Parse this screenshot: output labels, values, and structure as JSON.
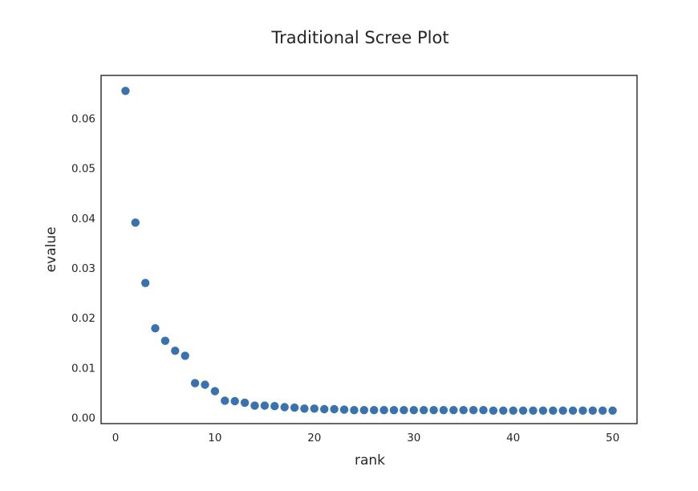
{
  "chart_data": {
    "type": "scatter",
    "title": "Traditional Scree Plot",
    "xlabel": "rank",
    "ylabel": "evalue",
    "xlim": [
      -1.45,
      52.45
    ],
    "ylim": [
      -0.0012,
      0.0686
    ],
    "xticks": [
      0,
      10,
      20,
      30,
      40,
      50
    ],
    "xtick_labels": [
      "0",
      "10",
      "20",
      "30",
      "40",
      "50"
    ],
    "yticks": [
      0.0,
      0.01,
      0.02,
      0.03,
      0.04,
      0.05,
      0.06
    ],
    "ytick_labels": [
      "0.00",
      "0.01",
      "0.02",
      "0.03",
      "0.04",
      "0.05",
      "0.06"
    ],
    "grid": false,
    "legend": "none",
    "marker_color": "#3a72b0",
    "x": [
      1,
      2,
      3,
      4,
      5,
      6,
      7,
      8,
      9,
      10,
      11,
      12,
      13,
      14,
      15,
      16,
      17,
      18,
      19,
      20,
      21,
      22,
      23,
      24,
      25,
      26,
      27,
      28,
      29,
      30,
      31,
      32,
      33,
      34,
      35,
      36,
      37,
      38,
      39,
      40,
      41,
      42,
      43,
      44,
      45,
      46,
      47,
      48,
      49,
      50
    ],
    "y": [
      0.0655,
      0.0391,
      0.027,
      0.0179,
      0.0154,
      0.0134,
      0.0124,
      0.0069,
      0.0066,
      0.0053,
      0.0034,
      0.0033,
      0.003,
      0.0024,
      0.0024,
      0.0023,
      0.0021,
      0.002,
      0.0018,
      0.0018,
      0.0017,
      0.0017,
      0.0016,
      0.0015,
      0.0015,
      0.0015,
      0.0015,
      0.0015,
      0.0015,
      0.0015,
      0.0015,
      0.0015,
      0.0015,
      0.0015,
      0.0015,
      0.0015,
      0.0015,
      0.0014,
      0.0014,
      0.0014,
      0.0014,
      0.0014,
      0.0014,
      0.0014,
      0.0014,
      0.0014,
      0.0014,
      0.0014,
      0.0014,
      0.0014
    ]
  }
}
